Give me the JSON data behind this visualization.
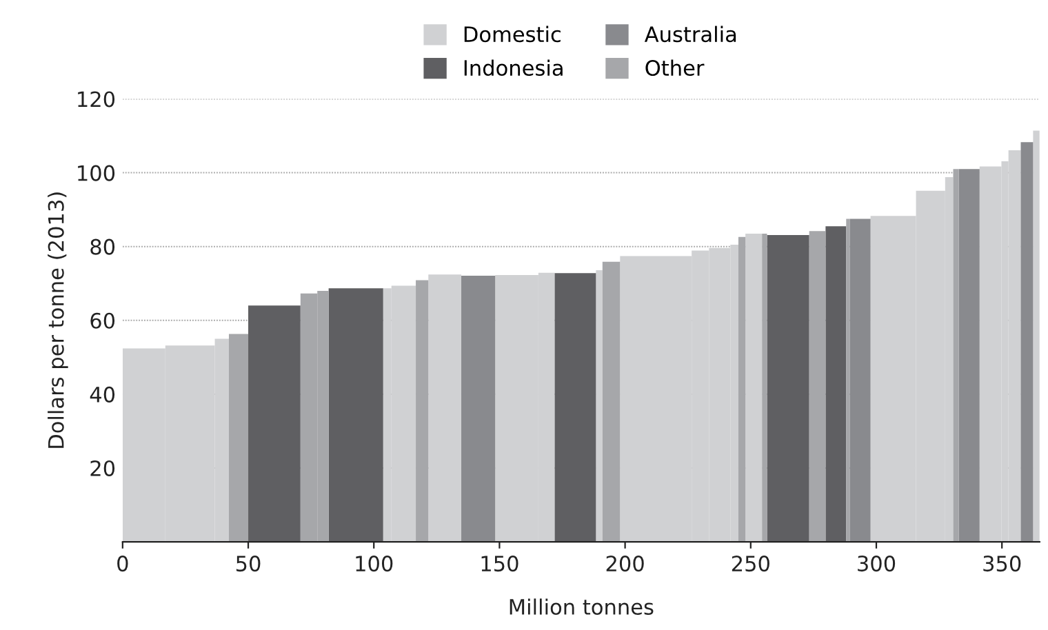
{
  "chart_data": {
    "type": "histogram",
    "xlabel": "Million tonnes",
    "ylabel": "Dollars per tonne (2013)",
    "bins": [
      0,
      17,
      36.7,
      42.3,
      50,
      70.8,
      77.5,
      82,
      103.7,
      107,
      116.7,
      121.7,
      134.8,
      148.3,
      165.5,
      172,
      188.4,
      191,
      198,
      226.5,
      233.4,
      241.9,
      245.1,
      247.9,
      254.5,
      256.5,
      273.3,
      279.8,
      288,
      289.4,
      297.7,
      315.8,
      327.4,
      330.6,
      332.8,
      341.1,
      349.8,
      352.6,
      357.5,
      362.4,
      365
    ],
    "series": [
      {
        "name": "Domestic",
        "color": "#d0d1d3",
        "values": [
          52.4,
          53.2,
          55,
          null,
          null,
          null,
          null,
          null,
          68.7,
          69.4,
          null,
          72.4,
          null,
          72.3,
          72.9,
          null,
          73.6,
          null,
          77.4,
          78.9,
          79.6,
          80.5,
          null,
          83.5,
          null,
          null,
          null,
          null,
          null,
          null,
          88.3,
          95.1,
          98.8,
          null,
          null,
          101.7,
          103.1,
          106.1,
          null,
          111.4
        ]
      },
      {
        "name": "Indonesia",
        "color": "#5f5f62",
        "values": [
          null,
          null,
          null,
          null,
          64,
          null,
          null,
          68.7,
          null,
          null,
          null,
          null,
          null,
          null,
          null,
          72.8,
          null,
          null,
          null,
          null,
          null,
          null,
          null,
          null,
          null,
          83.1,
          null,
          85.5,
          null,
          null,
          null,
          null,
          null,
          null,
          null,
          null,
          null,
          null,
          null,
          null
        ]
      },
      {
        "name": "Australia",
        "color": "#898a8e",
        "values": [
          null,
          null,
          null,
          null,
          null,
          null,
          null,
          null,
          null,
          null,
          null,
          null,
          72.1,
          null,
          null,
          null,
          null,
          null,
          null,
          null,
          null,
          null,
          null,
          null,
          null,
          null,
          null,
          null,
          null,
          87.5,
          null,
          null,
          null,
          null,
          101,
          null,
          null,
          null,
          108.3,
          null
        ]
      },
      {
        "name": "Other",
        "color": "#a6a7aa",
        "values": [
          null,
          null,
          null,
          56.3,
          null,
          67.3,
          68,
          null,
          null,
          null,
          70.9,
          null,
          null,
          null,
          null,
          null,
          null,
          75.9,
          null,
          null,
          null,
          null,
          82.6,
          null,
          83.5,
          null,
          84.2,
          null,
          87.5,
          null,
          null,
          null,
          null,
          101,
          null,
          null,
          null,
          null,
          null,
          null
        ]
      }
    ],
    "xlim": [
      0,
      365
    ],
    "xticks": [
      0,
      50,
      100,
      150,
      200,
      250,
      300,
      350
    ],
    "ylim": [
      0,
      120
    ],
    "yticks": [
      20,
      40,
      60,
      80,
      100,
      120
    ],
    "grid": "y",
    "legend": "top"
  }
}
